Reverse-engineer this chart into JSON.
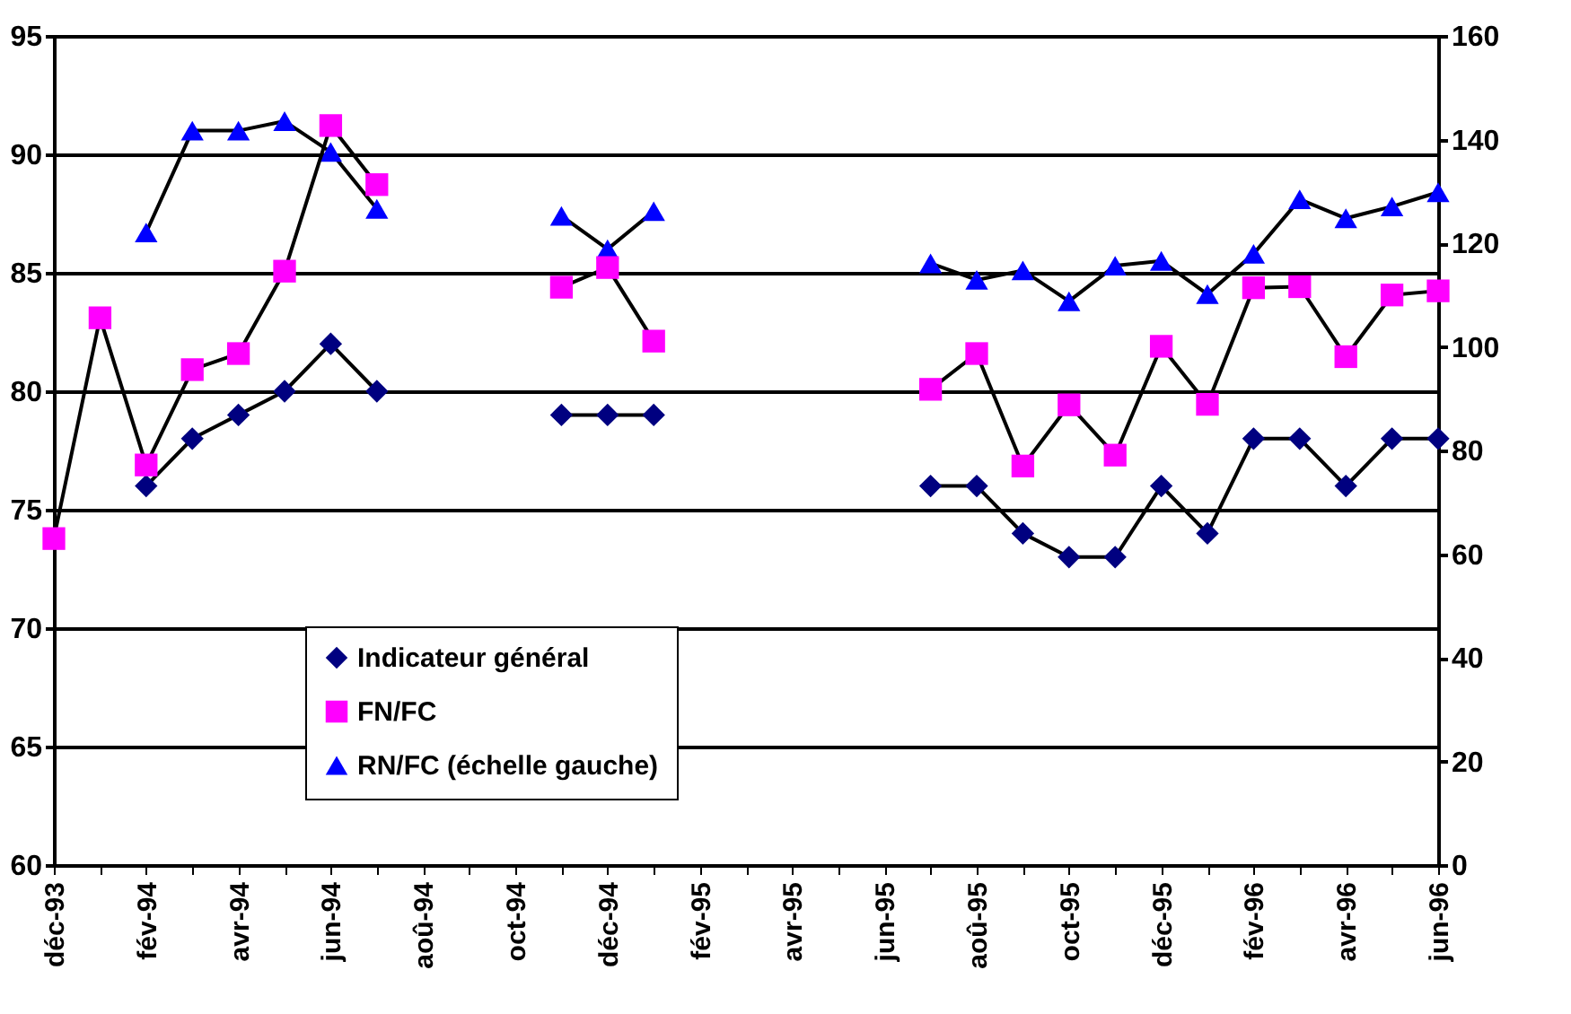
{
  "chart_data": {
    "type": "line",
    "categories": [
      "déc-93",
      null,
      "fév-94",
      null,
      "avr-94",
      null,
      "jun-94",
      null,
      "aoû-94",
      null,
      "oct-94",
      null,
      "déc-94",
      null,
      "fév-95",
      null,
      "avr-95",
      null,
      "jun-95",
      null,
      "aoû-95",
      null,
      "oct-95",
      null,
      "déc-95",
      null,
      "fév-96",
      null,
      "avr-96",
      null,
      "jun-96"
    ],
    "series": [
      {
        "name": "Indicateur général",
        "color": "#000080",
        "marker": "diamond",
        "values": [
          null,
          null,
          76,
          78,
          79,
          80,
          82,
          80,
          null,
          null,
          null,
          79,
          79,
          79,
          null,
          null,
          null,
          null,
          null,
          76,
          76,
          74,
          73,
          73,
          76,
          74,
          78,
          78,
          76,
          78,
          78
        ]
      },
      {
        "name": "FN/FC",
        "color": "#ff00ff",
        "marker": "square",
        "axis": "y2",
        "values": [
          63.0,
          105.6,
          77.2,
          95.6,
          98.7,
          114.6,
          142.7,
          131.3,
          null,
          null,
          null,
          111.5,
          115.3,
          101.1,
          null,
          null,
          null,
          null,
          null,
          91.8,
          98.7,
          77.0,
          88.8,
          79.1,
          100.1,
          88.9,
          111.4,
          111.6,
          98.1,
          110.0,
          110.8
        ]
      },
      {
        "name": "RN/FC (échelle gauche)",
        "color": "#0000ff",
        "marker": "triangle",
        "values": [
          null,
          null,
          86.7,
          91.0,
          91.0,
          91.4,
          90.1,
          87.7,
          null,
          null,
          null,
          87.4,
          86.0,
          87.6,
          null,
          null,
          null,
          null,
          null,
          85.4,
          84.7,
          85.1,
          83.8,
          85.3,
          85.5,
          84.1,
          85.8,
          88.1,
          87.3,
          87.8,
          88.4
        ]
      }
    ],
    "ylim": [
      60,
      95
    ],
    "yticks": [
      60,
      65,
      70,
      75,
      80,
      85,
      90,
      95
    ],
    "y2lim": [
      0,
      160
    ],
    "y2ticks": [
      0,
      20,
      40,
      60,
      80,
      100,
      120,
      140,
      160
    ],
    "grid": "y",
    "legend": "bottom",
    "line_style": "solid"
  }
}
